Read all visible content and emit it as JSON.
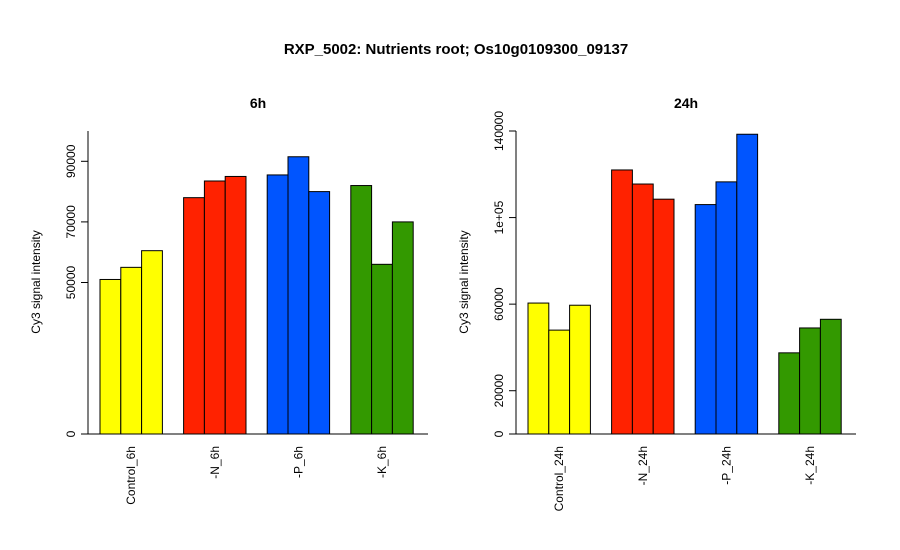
{
  "title": "RXP_5002: Nutrients root; Os10g0109300_09137",
  "colors": {
    "control": "#FFFF00",
    "minus_n": "#FF2200",
    "minus_p": "#0055FF",
    "minus_k": "#339900"
  },
  "chart_data": [
    {
      "type": "bar",
      "title": "6h",
      "ylabel": "Cy3 signal intensity",
      "ylim": [
        0,
        100000
      ],
      "yticks": [
        {
          "value": 0,
          "label": "0"
        },
        {
          "value": 50000,
          "label": "50000"
        },
        {
          "value": 70000,
          "label": "70000"
        },
        {
          "value": 90000,
          "label": "90000"
        }
      ],
      "groups": [
        {
          "label": "Control_6h",
          "color": "#FFFF00",
          "values": [
            51000,
            55000,
            60500
          ]
        },
        {
          "label": "-N_6h",
          "color": "#FF2200",
          "values": [
            78000,
            83500,
            85000
          ]
        },
        {
          "label": "-P_6h",
          "color": "#0055FF",
          "values": [
            85500,
            91500,
            80000
          ]
        },
        {
          "label": "-K_6h",
          "color": "#339900",
          "values": [
            82000,
            56000,
            70000
          ]
        }
      ]
    },
    {
      "type": "bar",
      "title": "24h",
      "ylabel": "Cy3 signal intensity",
      "ylim": [
        0,
        140000
      ],
      "yticks": [
        {
          "value": 0,
          "label": "0"
        },
        {
          "value": 20000,
          "label": "20000"
        },
        {
          "value": 60000,
          "label": "60000"
        },
        {
          "value": 100000,
          "label": "1e+05"
        },
        {
          "value": 140000,
          "label": "140000"
        }
      ],
      "groups": [
        {
          "label": "Control_24h",
          "color": "#FFFF00",
          "values": [
            60500,
            48000,
            59500
          ]
        },
        {
          "label": "-N_24h",
          "color": "#FF2200",
          "values": [
            122000,
            115500,
            108500
          ]
        },
        {
          "label": "-P_24h",
          "color": "#0055FF",
          "values": [
            106000,
            116500,
            138500
          ]
        },
        {
          "label": "-K_24h",
          "color": "#339900",
          "values": [
            37500,
            49000,
            53000
          ]
        }
      ]
    }
  ]
}
